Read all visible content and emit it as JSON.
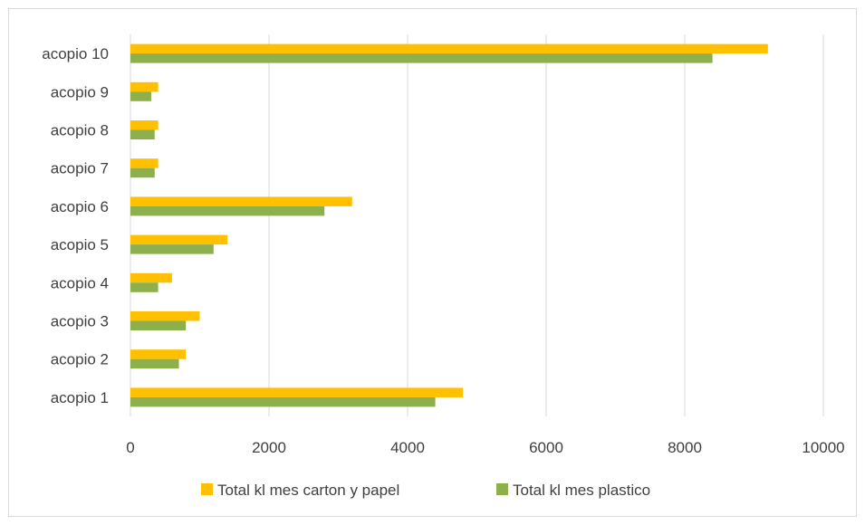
{
  "chart_data": {
    "type": "bar",
    "orientation": "horizontal",
    "categories": [
      "acopio 1",
      "acopio 2",
      "acopio 3",
      "acopio 4",
      "acopio 5",
      "acopio 6",
      "acopio 7",
      "acopio 8",
      "acopio 9",
      "acopio 10"
    ],
    "series": [
      {
        "name": "Total kl mes carton y papel",
        "color": "#FFC000",
        "values": [
          4800,
          800,
          1000,
          600,
          1400,
          3200,
          400,
          400,
          400,
          9200
        ]
      },
      {
        "name": "Total kl mes plastico",
        "color": "#8DB04D",
        "values": [
          4400,
          700,
          800,
          400,
          1200,
          2800,
          350,
          350,
          300,
          8400
        ]
      }
    ],
    "xlim": [
      0,
      10000
    ],
    "xticks": [
      "0",
      "2000",
      "4000",
      "6000",
      "8000",
      "10000"
    ],
    "grid": true,
    "legend_position": "bottom",
    "title": "",
    "xlabel": "",
    "ylabel": ""
  }
}
